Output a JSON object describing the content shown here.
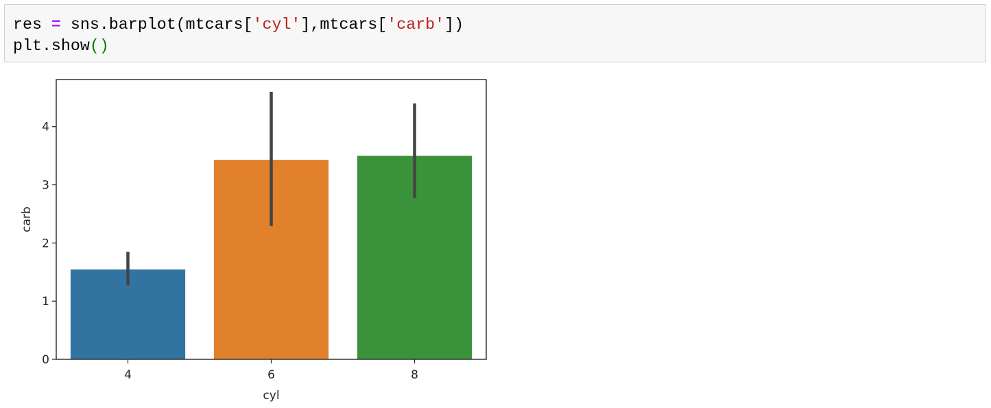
{
  "code": {
    "lines": [
      {
        "tokens": [
          {
            "text": "res ",
            "color": "#000000"
          },
          {
            "text": "=",
            "color": "#aa22ff"
          },
          {
            "text": " sns.barplot(mtcars[",
            "color": "#000000"
          },
          {
            "text": "'cyl'",
            "color": "#ba2121"
          },
          {
            "text": "],mtcars[",
            "color": "#000000"
          },
          {
            "text": "'carb'",
            "color": "#ba2121"
          },
          {
            "text": "])",
            "color": "#000000"
          }
        ]
      },
      {
        "tokens": [
          {
            "text": "plt.show",
            "color": "#000000"
          },
          {
            "text": "()",
            "color": "#008000"
          }
        ]
      }
    ]
  },
  "chart_data": {
    "type": "bar",
    "xlabel": "cyl",
    "ylabel": "carb",
    "categories": [
      "4",
      "6",
      "8"
    ],
    "series": [
      {
        "values": [
          1.545,
          3.43,
          3.5
        ],
        "ci_low": [
          1.27,
          2.29,
          2.77
        ],
        "ci_high": [
          1.85,
          4.6,
          4.4
        ]
      }
    ],
    "colors": [
      "#3274a1",
      "#e1812c",
      "#3a923a"
    ],
    "error_color": "#444444",
    "ylim": [
      0,
      4.81
    ],
    "yticks": [
      0,
      1,
      2,
      3,
      4
    ]
  }
}
